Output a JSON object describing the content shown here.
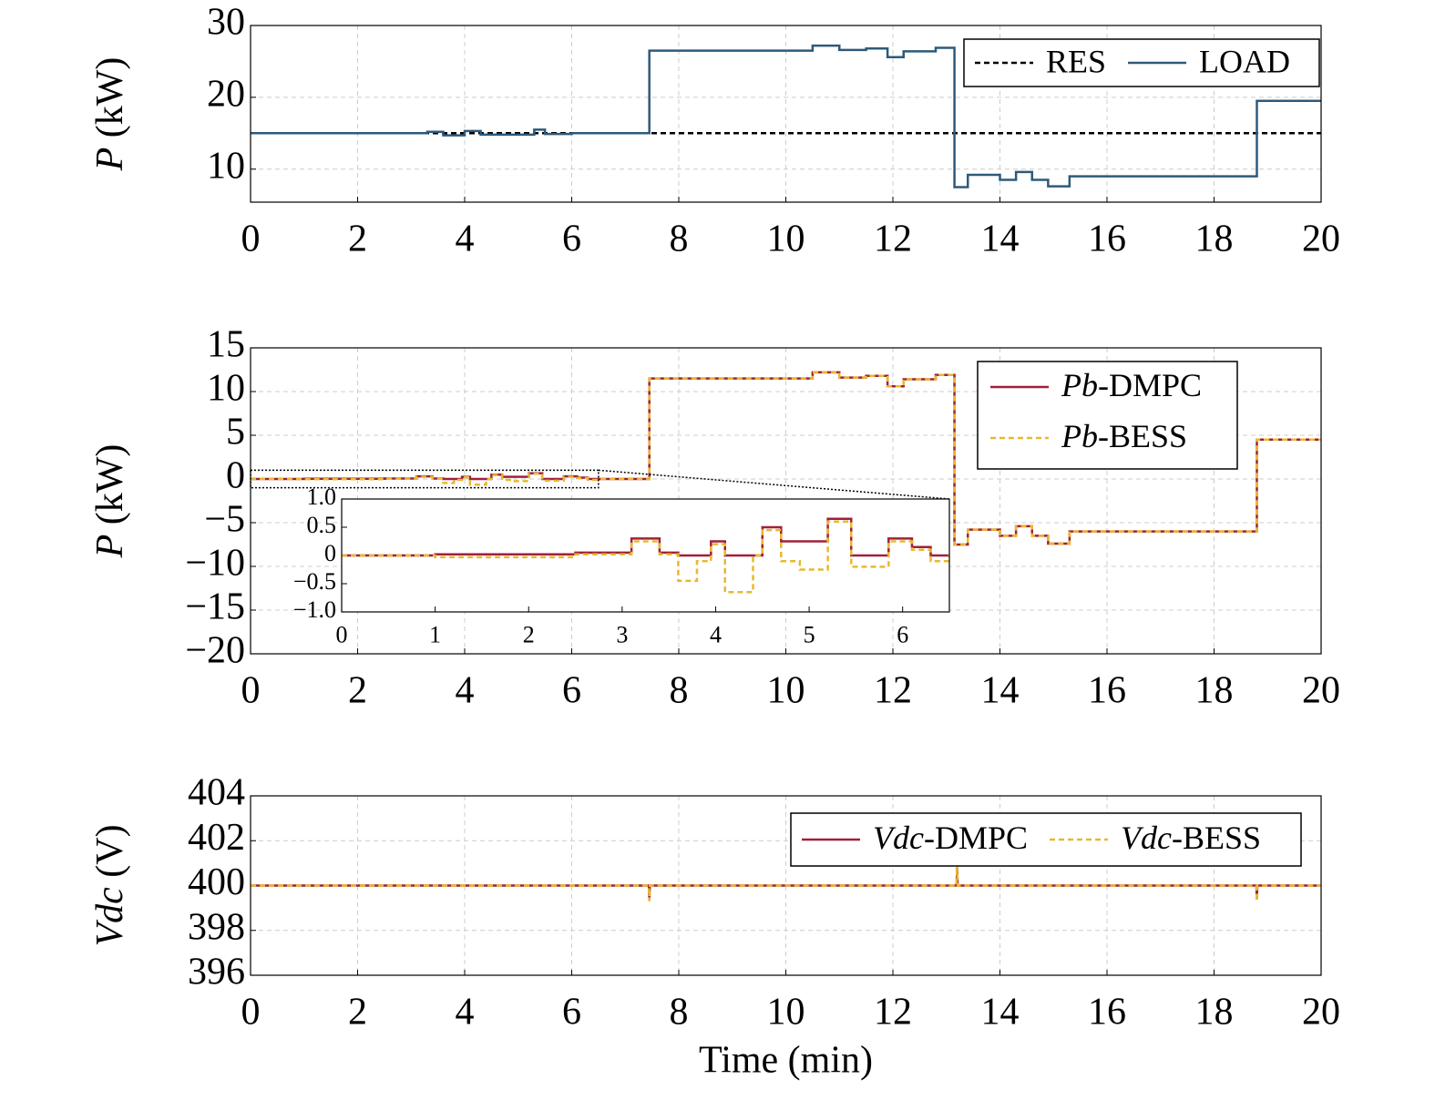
{
  "chart_data": [
    {
      "type": "line",
      "ylabel": "P (kW)",
      "xlim": [
        0,
        20
      ],
      "xticks": [
        0,
        2,
        4,
        6,
        8,
        10,
        12,
        14,
        16,
        18,
        20
      ],
      "ylim": [
        5.4,
        30
      ],
      "yticks": [
        10,
        20,
        30
      ],
      "grid": true,
      "legend": "upper right",
      "series": [
        {
          "name": "RES",
          "color": "#000000",
          "style": "dashed",
          "x": [
            0,
            20
          ],
          "values": [
            15,
            15
          ]
        },
        {
          "name": "LOAD",
          "color": "#2e5a7a",
          "style": "solid",
          "x": [
            0,
            3.3,
            3.3,
            3.6,
            3.6,
            4.0,
            4.0,
            4.3,
            4.3,
            5.3,
            5.3,
            5.5,
            5.5,
            6.0,
            6.0,
            7.45,
            7.45,
            10.5,
            10.5,
            11.0,
            11.0,
            11.5,
            11.5,
            11.9,
            11.9,
            12.2,
            12.2,
            12.8,
            12.8,
            13.15,
            13.15,
            13.4,
            13.4,
            14.0,
            14.0,
            14.3,
            14.3,
            14.6,
            14.6,
            14.9,
            14.9,
            15.3,
            15.3,
            18.8,
            18.8,
            20
          ],
          "values": [
            15,
            15,
            15.2,
            15.2,
            14.7,
            14.7,
            15.3,
            15.3,
            14.8,
            14.8,
            15.5,
            15.5,
            14.9,
            14.9,
            15,
            15,
            26.5,
            26.5,
            27.2,
            27.2,
            26.6,
            26.6,
            26.8,
            26.8,
            25.6,
            25.6,
            26.4,
            26.4,
            26.9,
            26.9,
            7.5,
            7.5,
            9.2,
            9.2,
            8.5,
            8.5,
            9.6,
            9.6,
            8.5,
            8.5,
            7.6,
            7.6,
            9,
            9,
            19.5,
            19.5
          ]
        }
      ]
    },
    {
      "type": "line",
      "ylabel": "P (kW)",
      "xlim": [
        0,
        20
      ],
      "xticks": [
        0,
        2,
        4,
        6,
        8,
        10,
        12,
        14,
        16,
        18,
        20
      ],
      "ylim": [
        -20,
        15
      ],
      "yticks": [
        {
          "value": -20,
          "label": "−20"
        },
        {
          "value": -15,
          "label": "−15"
        },
        {
          "value": -10,
          "label": "−10"
        },
        {
          "value": -5,
          "label": "−5"
        },
        0,
        5,
        10,
        15
      ],
      "grid": true,
      "legend": "upper right",
      "inset": {
        "xlim": [
          0,
          6.5
        ],
        "xticks": [
          0,
          1,
          2,
          3,
          4,
          5,
          6
        ],
        "ylim": [
          -1,
          1
        ],
        "yticks": [
          {
            "value": -1,
            "label": "−1.0"
          },
          {
            "value": -0.5,
            "label": "−0.5"
          },
          0,
          0.5,
          {
            "value": 1,
            "label": "1.0"
          }
        ]
      },
      "series": [
        {
          "name": "Pb-DMPC",
          "color": "#a0203a",
          "style": "solid",
          "x": [
            0,
            1,
            1,
            2.5,
            2.5,
            3.1,
            3.1,
            3.4,
            3.4,
            3.6,
            3.6,
            3.95,
            3.95,
            4.1,
            4.1,
            4.5,
            4.5,
            4.7,
            4.7,
            5.2,
            5.2,
            5.45,
            5.45,
            5.85,
            5.85,
            6.1,
            6.1,
            6.3,
            6.3,
            7.45,
            7.45,
            10.5,
            10.5,
            11,
            11,
            11.5,
            11.5,
            11.9,
            11.9,
            12.2,
            12.2,
            12.8,
            12.8,
            13.15,
            13.15,
            13.4,
            13.4,
            14,
            14,
            14.3,
            14.3,
            14.6,
            14.6,
            14.9,
            14.9,
            15.3,
            15.3,
            18.8,
            18.8,
            20
          ],
          "values": [
            0,
            0,
            0.02,
            0.02,
            0.05,
            0.05,
            0.3,
            0.3,
            0.05,
            0.05,
            0,
            0,
            0.25,
            0.25,
            0,
            0,
            0.5,
            0.5,
            0.25,
            0.25,
            0.65,
            0.65,
            0,
            0,
            0.3,
            0.3,
            0.15,
            0.15,
            0,
            0,
            11.5,
            11.5,
            12.2,
            12.2,
            11.6,
            11.6,
            11.8,
            11.8,
            10.6,
            10.6,
            11.4,
            11.4,
            11.9,
            11.9,
            -7.5,
            -7.5,
            -5.8,
            -5.8,
            -6.5,
            -6.5,
            -5.4,
            -5.4,
            -6.5,
            -6.5,
            -7.4,
            -7.4,
            -6,
            -6,
            4.5,
            4.5
          ]
        },
        {
          "name": "Pb-BESS",
          "color": "#e8b830",
          "style": "dashed",
          "x": [
            0,
            1,
            1,
            2.5,
            2.5,
            3.1,
            3.1,
            3.4,
            3.4,
            3.6,
            3.6,
            3.8,
            3.8,
            3.95,
            3.95,
            4.1,
            4.1,
            4.4,
            4.4,
            4.5,
            4.5,
            4.7,
            4.7,
            4.9,
            4.9,
            5.2,
            5.2,
            5.45,
            5.45,
            5.85,
            5.85,
            6.1,
            6.1,
            6.3,
            6.3,
            6.5,
            6.5,
            7.45,
            7.45,
            10.5,
            10.5,
            11,
            11,
            11.5,
            11.5,
            11.9,
            11.9,
            12.2,
            12.2,
            12.8,
            12.8,
            13.15,
            13.15,
            13.4,
            13.4,
            14,
            14,
            14.3,
            14.3,
            14.6,
            14.6,
            14.9,
            14.9,
            15.3,
            15.3,
            18.8,
            18.8,
            20
          ],
          "values": [
            0,
            0,
            -0.03,
            -0.03,
            0.02,
            0.02,
            0.25,
            0.25,
            0.02,
            0.02,
            -0.45,
            -0.45,
            -0.1,
            -0.1,
            0.2,
            0.2,
            -0.65,
            -0.65,
            0,
            0,
            0.45,
            0.45,
            -0.1,
            -0.1,
            -0.25,
            -0.25,
            0.6,
            0.6,
            -0.2,
            -0.2,
            0.25,
            0.25,
            0.1,
            0.1,
            -0.1,
            -0.1,
            0,
            0,
            11.5,
            11.5,
            12.2,
            12.2,
            11.6,
            11.6,
            11.8,
            11.8,
            10.6,
            10.6,
            11.4,
            11.4,
            11.9,
            11.9,
            -7.5,
            -7.5,
            -5.8,
            -5.8,
            -6.5,
            -6.5,
            -5.4,
            -5.4,
            -6.5,
            -6.5,
            -7.4,
            -7.4,
            -6,
            -6,
            4.5,
            4.5
          ]
        }
      ]
    },
    {
      "type": "line",
      "ylabel": "Vdc (V)",
      "xlabel": "Time (min)",
      "xlim": [
        0,
        20
      ],
      "xticks": [
        0,
        2,
        4,
        6,
        8,
        10,
        12,
        14,
        16,
        18,
        20
      ],
      "ylim": [
        396,
        404
      ],
      "yticks": [
        396,
        398,
        400,
        402,
        404
      ],
      "grid": true,
      "legend": "upper right",
      "series": [
        {
          "name": "Vdc-DMPC",
          "color": "#a0203a",
          "style": "solid",
          "x": [
            0,
            7.44,
            7.45,
            7.46,
            13.19,
            13.2,
            13.21,
            18.79,
            18.8,
            18.81,
            20
          ],
          "values": [
            400,
            400,
            399.4,
            400,
            400,
            400.8,
            400,
            400,
            399.4,
            400,
            400
          ]
        },
        {
          "name": "Vdc-BESS",
          "color": "#e8b830",
          "style": "dashed",
          "x": [
            0,
            7.44,
            7.45,
            7.46,
            13.19,
            13.2,
            13.21,
            18.79,
            18.8,
            18.81,
            20
          ],
          "values": [
            400,
            400,
            399.3,
            400,
            400,
            400.9,
            400,
            400,
            399.3,
            400,
            400
          ]
        }
      ]
    }
  ]
}
